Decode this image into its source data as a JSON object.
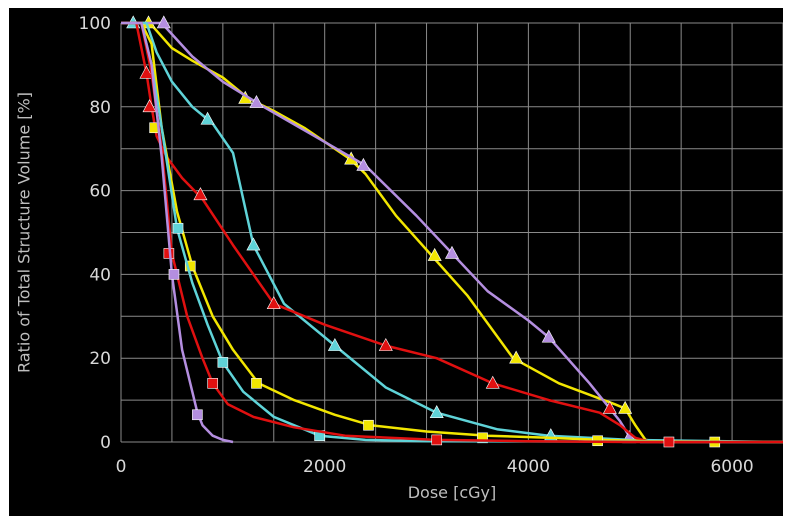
{
  "chart_data": {
    "type": "line",
    "title": "",
    "xlabel": "Dose [cGy]",
    "ylabel": "Ratio of Total Structure Volume [%]",
    "xlim": [
      0,
      6500
    ],
    "ylim": [
      0,
      100
    ],
    "xticks": [
      "0",
      "2000",
      "4000",
      "6000"
    ],
    "yticks": [
      "0",
      "20",
      "40",
      "60",
      "80",
      "100"
    ],
    "grid": true,
    "legend": "none",
    "colors": {
      "background": "#000000",
      "grid": "#8a8a8a",
      "yellow": "#f2e600",
      "cyan": "#5fd3d8",
      "red": "#e01010",
      "purple": "#b48ee0"
    },
    "series": [
      {
        "color": "yellow",
        "marker": "triangle",
        "x": [
          0,
          250,
          300,
          500,
          700,
          1000,
          1250,
          1500,
          1800,
          2250,
          2400,
          2700,
          3050,
          3400,
          3850,
          4300,
          4850,
          4950,
          5050,
          5150,
          5300,
          6500
        ],
        "y": [
          100,
          100,
          99.5,
          94,
          91,
          87,
          82,
          79,
          75,
          67.5,
          64,
          54,
          44.5,
          35,
          20,
          14,
          9,
          8,
          4,
          0.5,
          0,
          0
        ],
        "markers_x": [
          270,
          1220,
          2260,
          3080,
          3880,
          4950
        ],
        "markers_y": [
          100,
          82,
          67.5,
          44.5,
          20,
          8
        ]
      },
      {
        "color": "purple",
        "marker": "triangle",
        "x": [
          0,
          250,
          400,
          700,
          1000,
          1400,
          1900,
          2400,
          2900,
          3250,
          3600,
          4000,
          4200,
          4600,
          4900,
          5000,
          5100,
          6500
        ],
        "y": [
          100,
          100,
          100,
          92,
          86,
          80,
          73,
          66,
          54,
          45,
          36,
          29,
          25,
          14,
          5,
          1,
          0,
          0
        ],
        "markers_x": [
          420,
          1330,
          2380,
          3250,
          4200,
          4990
        ],
        "markers_y": [
          100,
          81,
          66,
          45,
          25,
          1
        ]
      },
      {
        "color": "cyan",
        "marker": "triangle",
        "x": [
          0,
          100,
          250,
          350,
          500,
          700,
          900,
          1100,
          1300,
          1600,
          2100,
          2600,
          3100,
          3700,
          4200,
          5000,
          6500
        ],
        "y": [
          100,
          100,
          100,
          93,
          86,
          80,
          76,
          69,
          47,
          33,
          23,
          13,
          7,
          3,
          1.5,
          0.5,
          0
        ],
        "markers_x": [
          120,
          850,
          1300,
          2100,
          3100,
          4220
        ],
        "markers_y": [
          100,
          77,
          47,
          23,
          7,
          1.5
        ]
      },
      {
        "color": "red",
        "marker": "triangle",
        "x": [
          0,
          150,
          250,
          300,
          350,
          450,
          600,
          800,
          1100,
          1500,
          2000,
          2600,
          3100,
          3650,
          4200,
          4700,
          4900,
          5050,
          5200,
          6500
        ],
        "y": [
          100,
          100,
          88,
          80,
          73,
          68,
          63,
          58,
          47,
          33,
          28,
          23,
          20,
          14,
          10,
          7,
          4,
          1,
          0,
          0
        ],
        "markers_x": [
          250,
          280,
          780,
          1500,
          2600,
          3650,
          4800
        ],
        "markers_y": [
          88,
          80,
          59,
          33,
          23,
          14,
          8
        ]
      },
      {
        "color": "yellow",
        "marker": "square",
        "x": [
          0,
          200,
          300,
          400,
          550,
          700,
          900,
          1100,
          1350,
          1700,
          2100,
          2450,
          3000,
          3600,
          4200,
          4700,
          5200,
          6500
        ],
        "y": [
          100,
          100,
          95,
          75,
          55,
          42,
          30,
          22,
          14,
          10,
          6.5,
          4,
          2.5,
          1.5,
          1,
          0.5,
          0.2,
          0
        ],
        "markers_x": [
          330,
          680,
          1330,
          2430,
          3550,
          4680,
          5830
        ],
        "markers_y": [
          75,
          42,
          14,
          4,
          1,
          0.3,
          0
        ]
      },
      {
        "color": "cyan",
        "marker": "square",
        "x": [
          0,
          200,
          300,
          400,
          550,
          700,
          850,
          1000,
          1200,
          1500,
          1950,
          2400,
          3000,
          6500
        ],
        "y": [
          100,
          100,
          90,
          75,
          51,
          38,
          28,
          19,
          12,
          6,
          1.5,
          0.5,
          0.2,
          0
        ],
        "markers_x": [
          560,
          1000,
          1950
        ],
        "markers_y": [
          51,
          19,
          1.5
        ]
      },
      {
        "color": "red",
        "marker": "square",
        "x": [
          0,
          200,
          300,
          400,
          500,
          650,
          800,
          900,
          1050,
          1300,
          1700,
          2200,
          3100,
          4000,
          5000,
          6500
        ],
        "y": [
          100,
          100,
          88,
          70,
          45,
          30,
          20,
          14,
          9,
          6,
          3.5,
          1.5,
          0.5,
          0.2,
          0,
          0
        ],
        "markers_x": [
          470,
          900,
          3100,
          5380
        ],
        "markers_y": [
          45,
          14,
          0.5,
          0
        ]
      },
      {
        "color": "purple",
        "marker": "square",
        "x": [
          0,
          200,
          300,
          400,
          500,
          600,
          700,
          750,
          800,
          900,
          1000,
          1100
        ],
        "y": [
          100,
          100,
          90,
          68,
          40,
          22,
          12,
          7,
          4,
          1.5,
          0.5,
          0
        ],
        "markers_x": [
          520,
          750
        ],
        "markers_y": [
          40,
          6.5
        ]
      }
    ]
  }
}
